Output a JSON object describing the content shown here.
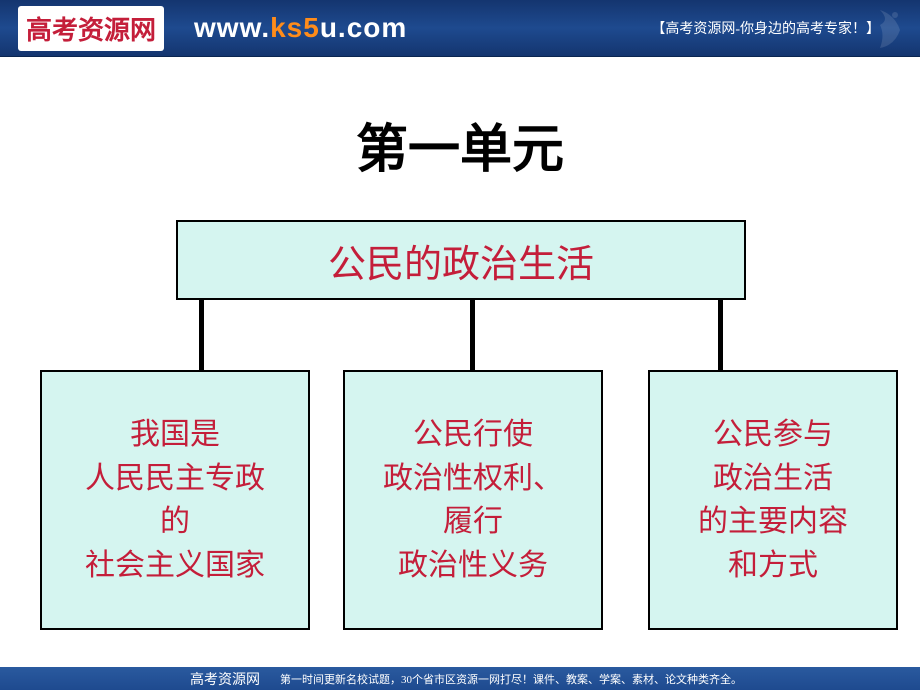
{
  "header": {
    "logo_text": "高考资源网",
    "url_prefix": "www.",
    "url_highlight": "ks5",
    "url_suffix": "u.com",
    "tagline": "【高考资源网-你身边的高考专家！】"
  },
  "title": "第一单元",
  "diagram": {
    "root": {
      "label": "公民的政治生活",
      "bg_color": "#d5f5f0",
      "text_color": "#c41e3a"
    },
    "children": [
      {
        "label": "我国是\n人民民主专政\n的\n社会主义国家",
        "bg_color": "#d5f5f0",
        "text_color": "#c41e3a"
      },
      {
        "label": "公民行使\n政治性权利、\n履行\n政治性义务",
        "bg_color": "#d5f5f0",
        "text_color": "#c41e3a"
      },
      {
        "label": "公民参与\n政治生活\n的主要内容\n和方式",
        "bg_color": "#d5f5f0",
        "text_color": "#c41e3a"
      }
    ],
    "connector_color": "#000000",
    "connector_width": 5
  },
  "footer": {
    "brand": "高考资源网",
    "text": "第一时间更新名校试题，30个省市区资源一网打尽！课件、教案、学案、素材、论文种类齐全。"
  },
  "colors": {
    "header_bg": "#1e4a8f",
    "page_bg": "#ffffff"
  }
}
